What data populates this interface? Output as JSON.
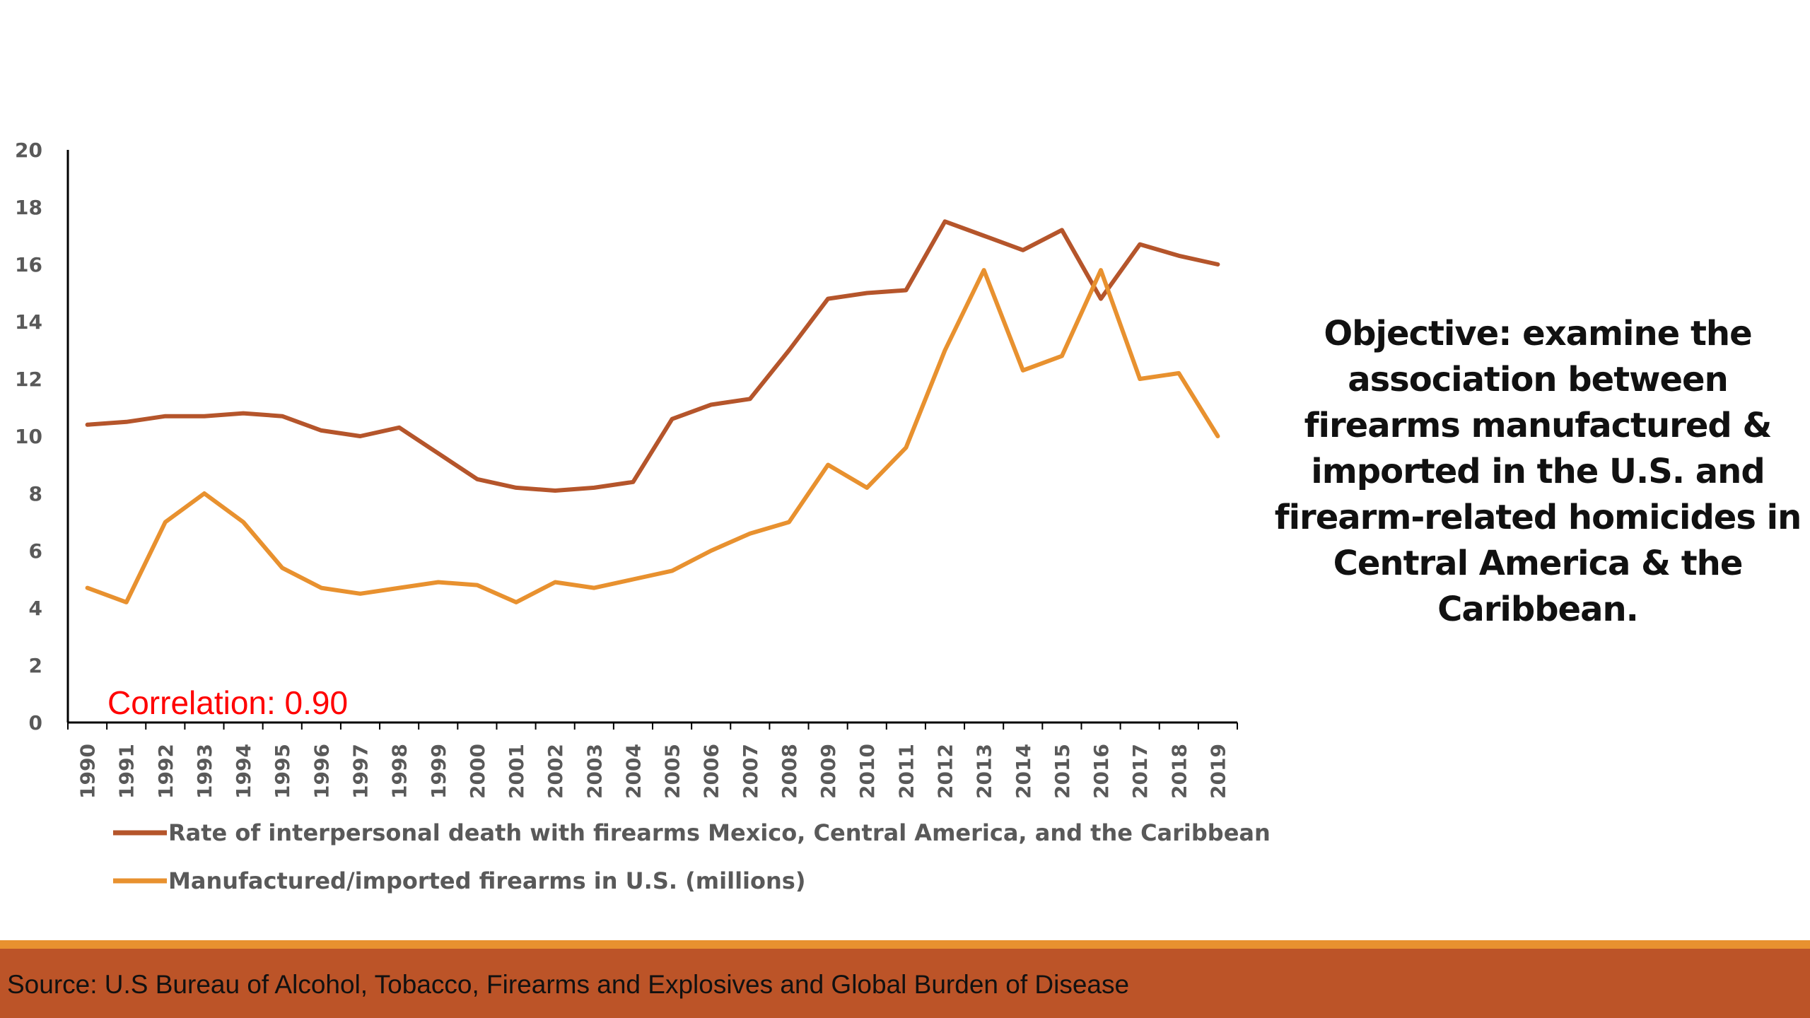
{
  "chart_data": {
    "type": "line",
    "x": [
      "1990",
      "1991",
      "1992",
      "1993",
      "1994",
      "1995",
      "1996",
      "1997",
      "1998",
      "1999",
      "2000",
      "2001",
      "2002",
      "2003",
      "2004",
      "2005",
      "2006",
      "2007",
      "2008",
      "2009",
      "2010",
      "2011",
      "2012",
      "2013",
      "2014",
      "2015",
      "2016",
      "2017",
      "2018",
      "2019"
    ],
    "ylim": [
      0,
      20
    ],
    "yticks": [
      0,
      2,
      4,
      6,
      8,
      10,
      12,
      14,
      16,
      18,
      20
    ],
    "grid": false,
    "legend_position": "bottom-left",
    "series": [
      {
        "name": "Rate of interpersonal death with firearms Mexico, Central America, and the Caribbean",
        "color": "#b5552b",
        "values": [
          10.4,
          10.5,
          10.7,
          10.7,
          10.8,
          10.7,
          10.2,
          10.0,
          10.3,
          9.4,
          8.5,
          8.2,
          8.1,
          8.2,
          8.4,
          10.6,
          11.1,
          11.3,
          13.0,
          14.8,
          15.0,
          15.1,
          17.5,
          17.0,
          16.5,
          17.2,
          14.8,
          16.7,
          16.3,
          16.0
        ]
      },
      {
        "name": "Manufactured/imported firearms in U.S. (millions)",
        "color": "#e8912f",
        "values": [
          4.7,
          4.2,
          7.0,
          8.0,
          7.0,
          5.4,
          4.7,
          4.5,
          4.7,
          4.9,
          4.8,
          4.2,
          4.9,
          4.7,
          5.0,
          5.3,
          6.0,
          6.6,
          7.0,
          9.0,
          8.2,
          9.6,
          13.0,
          15.8,
          12.3,
          12.8,
          15.8,
          12.0,
          12.2,
          10.0
        ]
      }
    ],
    "annotation": "Correlation: 0.90"
  },
  "objective_lines": [
    "Objective: examine the",
    "association between",
    "firearms manufactured &",
    "imported in the U.S. and",
    "firearm-related homicides in",
    "Central America & the",
    "Caribbean."
  ],
  "source": "Source: U.S Bureau of Alcohol, Tobacco, Firearms and Explosives and Global Burden of Disease",
  "colors": {
    "footer_bar": "#bc5428",
    "footer_stripe": "#e8912f",
    "annotation": "#ff0000"
  }
}
